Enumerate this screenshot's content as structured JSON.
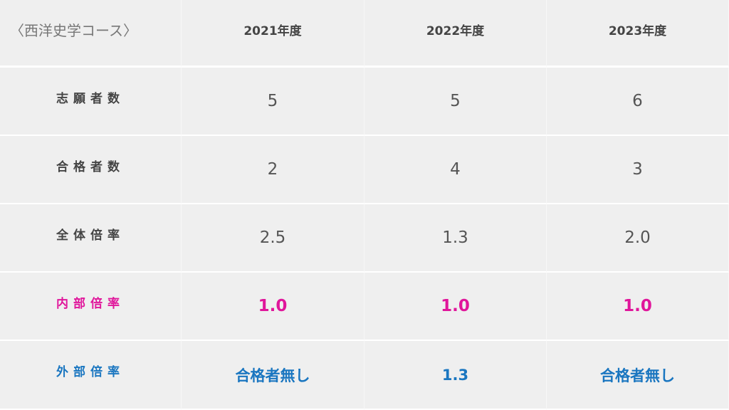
{
  "table": {
    "header": [
      "〈西洋史学コース〉",
      "2021年度",
      "2022年度",
      "2023年度"
    ],
    "rows": [
      [
        "志願者数",
        "5",
        "5",
        "6"
      ],
      [
        "合格者数",
        "2",
        "4",
        "3"
      ],
      [
        "全体倍率",
        "2.5",
        "1.3",
        "2.0"
      ],
      [
        "内部倍率",
        "1.0",
        "1.0",
        "1.0"
      ],
      [
        "外部倍率",
        "合格者無し",
        "1.3",
        "合格者無し"
      ]
    ]
  }
}
